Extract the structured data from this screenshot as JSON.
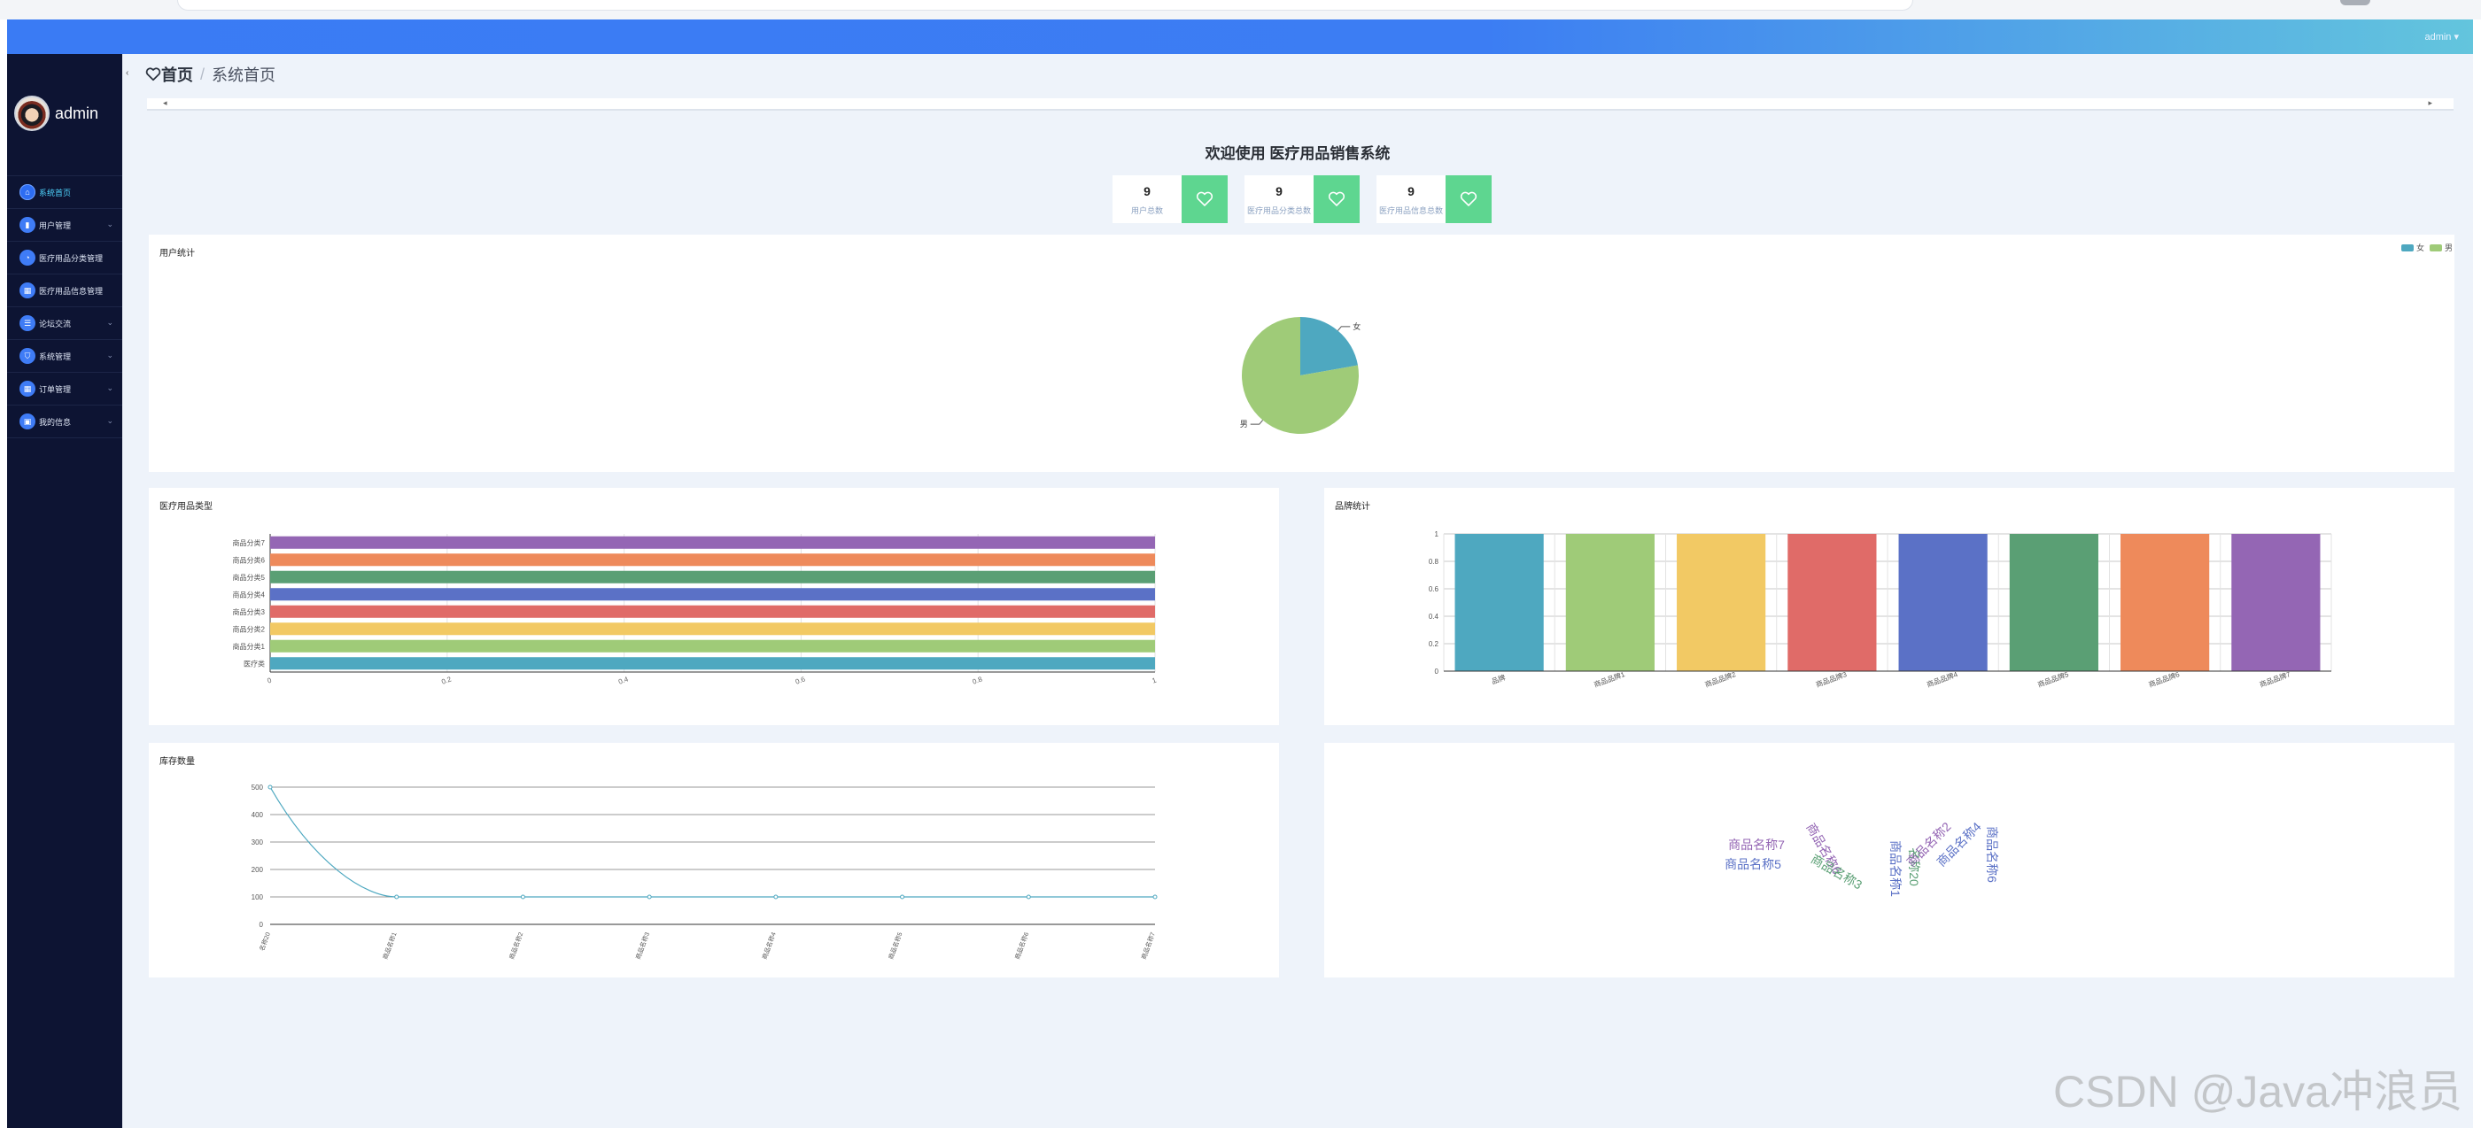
{
  "topbar": {
    "user_label": "admin ▾"
  },
  "profile": {
    "name": "admin"
  },
  "sidebar": {
    "items": [
      {
        "label": "系统首页",
        "icon": "home-icon",
        "has_children": false,
        "active": true
      },
      {
        "label": "用户管理",
        "icon": "user-icon",
        "has_children": true,
        "active": false
      },
      {
        "label": "医疗用品分类管理",
        "icon": "category-icon",
        "has_children": false,
        "active": false
      },
      {
        "label": "医疗用品信息管理",
        "icon": "grid-icon",
        "has_children": false,
        "active": false
      },
      {
        "label": "论坛交流",
        "icon": "forum-icon",
        "has_children": true,
        "active": false
      },
      {
        "label": "系统管理",
        "icon": "shield-icon",
        "has_children": true,
        "active": false
      },
      {
        "label": "订单管理",
        "icon": "order-icon",
        "has_children": true,
        "active": false
      },
      {
        "label": "我的信息",
        "icon": "profile-icon",
        "has_children": true,
        "active": false
      }
    ]
  },
  "breadcrumb": {
    "home": "首页",
    "separator": "/",
    "current": "系统首页"
  },
  "welcome": "欢迎使用 医疗用品销售系统",
  "stats": [
    {
      "value": "9",
      "label": "用户总数"
    },
    {
      "value": "9",
      "label": "医疗用品分类总数"
    },
    {
      "value": "9",
      "label": "医疗用品信息总数"
    }
  ],
  "colors": {
    "accent": "#3a7bf4",
    "sidebar_bg": "#0d1433",
    "stat_green": "#5ed690",
    "palette": [
      "#4ea8c0",
      "#9fcb78",
      "#f2c964",
      "#e06b68",
      "#5b71c6",
      "#5a9f74",
      "#ee8a5b",
      "#9466b4"
    ]
  },
  "chart_data": [
    {
      "type": "pie",
      "title": "用户统计",
      "legend_position": "top-right",
      "categories": [
        "女",
        "男"
      ],
      "values": [
        2,
        7
      ],
      "labels": [
        "女",
        "男"
      ]
    },
    {
      "type": "bar",
      "orientation": "horizontal",
      "title": "医疗用品类型",
      "categories": [
        "医疗类",
        "商品分类1",
        "商品分类2",
        "商品分类3",
        "商品分类4",
        "商品分类5",
        "商品分类6",
        "商品分类7"
      ],
      "values": [
        1,
        1,
        1,
        1,
        1,
        1,
        1,
        1
      ],
      "xlim": [
        0,
        1
      ],
      "x_ticks": [
        "0",
        "0.2",
        "0.4",
        "0.6",
        "0.8",
        "1"
      ],
      "grid": true
    },
    {
      "type": "bar",
      "title": "品牌统计",
      "categories": [
        "品牌",
        "商品品牌1",
        "商品品牌2",
        "商品品牌3",
        "商品品牌4",
        "商品品牌5",
        "商品品牌6",
        "商品品牌7"
      ],
      "values": [
        1,
        1,
        1,
        1,
        1,
        1,
        1,
        1
      ],
      "ylim": [
        0,
        1
      ],
      "y_ticks": [
        "0",
        "0.2",
        "0.4",
        "0.6",
        "0.8",
        "1"
      ],
      "grid": true
    },
    {
      "type": "line",
      "title": "库存数量",
      "categories": [
        "名称20",
        "商品名称1",
        "商品名称2",
        "商品名称3",
        "商品名称4",
        "商品名称5",
        "商品名称6",
        "商品名称7"
      ],
      "values": [
        500,
        100,
        100,
        100,
        100,
        100,
        100,
        100
      ],
      "ylim": [
        0,
        500
      ],
      "y_ticks": [
        "0",
        "100",
        "200",
        "300",
        "400",
        "500"
      ],
      "grid": true
    },
    {
      "type": "wordcloud",
      "title": "",
      "words": [
        {
          "text": "商品名称7",
          "color": "#9466b4"
        },
        {
          "text": "商品名称5",
          "color": "#5b71c6"
        },
        {
          "text": "商品名称6",
          "color": "#9466b4"
        },
        {
          "text": "商品名称3",
          "color": "#5a9f74"
        },
        {
          "text": "商品名称1",
          "color": "#5b71c6"
        },
        {
          "text": "名称20",
          "color": "#5a9f74"
        },
        {
          "text": "商品名称2",
          "color": "#9466b4"
        },
        {
          "text": "商品名称4",
          "color": "#5b71c6"
        },
        {
          "text": "商品名称6",
          "color": "#5b71c6"
        }
      ]
    }
  ],
  "watermark": "CSDN @Java冲浪员"
}
